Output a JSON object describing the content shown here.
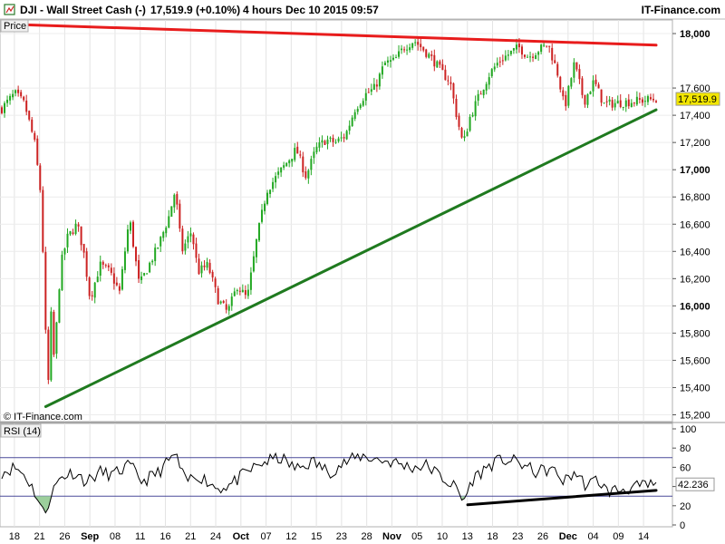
{
  "header": {
    "title": "DJI - Wall Street Cash (-)",
    "last": "17,519.9 (+0.10%)",
    "period": "4 hours",
    "datetime": "Dec 10 2015 09:57",
    "brand": "IT-Finance.com"
  },
  "panels": {
    "price_label": "Price",
    "rsi_label": "RSI (14)",
    "credit": "© IT-Finance.com"
  },
  "colors": {
    "up_candle": "#22a822",
    "down_candle": "#cc2222",
    "resistance": "#e81c1c",
    "support": "#1f7a1f",
    "rsi_trend": "#000000",
    "price_tag": "#f2e600",
    "rsi_oversold_fill": "#9ccf9c"
  },
  "chart_data": [
    {
      "type": "candlestick",
      "name": "price",
      "ylim": [
        15150,
        18100
      ],
      "y_ticks": [
        15200,
        15400,
        15600,
        15800,
        16000,
        16200,
        16400,
        16600,
        16800,
        17000,
        17200,
        17400,
        17600,
        18000
      ],
      "y_tick_labels": [
        "15,200",
        "15,400",
        "15,600",
        "15,800",
        "16,000",
        "16,200",
        "16,400",
        "16,600",
        "16,800",
        "17,000",
        "17,200",
        "17,400",
        "17,600",
        "18,000"
      ],
      "y_bold_ticks": [
        16000,
        17000,
        18000
      ],
      "x_labels": [
        "18",
        "21",
        "26",
        "Sep",
        "08",
        "11",
        "16",
        "21",
        "24",
        "Oct",
        "07",
        "12",
        "15",
        "23",
        "28",
        "Nov",
        "05",
        "10",
        "13",
        "18",
        "23",
        "26",
        "Dec",
        "04",
        "09",
        "14"
      ],
      "x_bold_labels": [
        "Sep",
        "Oct",
        "Nov",
        "Dec"
      ],
      "last_value": 17519.9,
      "last_value_label": "17,519.9",
      "path": [
        {
          "t": 0.0,
          "v": 17450
        },
        {
          "t": 0.02,
          "v": 17560
        },
        {
          "t": 0.035,
          "v": 17480
        },
        {
          "t": 0.05,
          "v": 17200
        },
        {
          "t": 0.06,
          "v": 16800
        },
        {
          "t": 0.066,
          "v": 15950
        },
        {
          "t": 0.07,
          "v": 15300
        },
        {
          "t": 0.075,
          "v": 15950
        },
        {
          "t": 0.08,
          "v": 15600
        },
        {
          "t": 0.09,
          "v": 16300
        },
        {
          "t": 0.1,
          "v": 16500
        },
        {
          "t": 0.115,
          "v": 16600
        },
        {
          "t": 0.125,
          "v": 16400
        },
        {
          "t": 0.135,
          "v": 16050
        },
        {
          "t": 0.15,
          "v": 16300
        },
        {
          "t": 0.165,
          "v": 16250
        },
        {
          "t": 0.18,
          "v": 16100
        },
        {
          "t": 0.195,
          "v": 16650
        },
        {
          "t": 0.21,
          "v": 16150
        },
        {
          "t": 0.225,
          "v": 16300
        },
        {
          "t": 0.24,
          "v": 16450
        },
        {
          "t": 0.255,
          "v": 16650
        },
        {
          "t": 0.265,
          "v": 16850
        },
        {
          "t": 0.275,
          "v": 16400
        },
        {
          "t": 0.29,
          "v": 16550
        },
        {
          "t": 0.3,
          "v": 16250
        },
        {
          "t": 0.315,
          "v": 16300
        },
        {
          "t": 0.33,
          "v": 16050
        },
        {
          "t": 0.345,
          "v": 15950
        },
        {
          "t": 0.36,
          "v": 16150
        },
        {
          "t": 0.375,
          "v": 16050
        },
        {
          "t": 0.39,
          "v": 16500
        },
        {
          "t": 0.405,
          "v": 16850
        },
        {
          "t": 0.42,
          "v": 16950
        },
        {
          "t": 0.435,
          "v": 17050
        },
        {
          "t": 0.45,
          "v": 17150
        },
        {
          "t": 0.465,
          "v": 16950
        },
        {
          "t": 0.48,
          "v": 17150
        },
        {
          "t": 0.495,
          "v": 17220
        },
        {
          "t": 0.51,
          "v": 17200
        },
        {
          "t": 0.525,
          "v": 17250
        },
        {
          "t": 0.54,
          "v": 17450
        },
        {
          "t": 0.555,
          "v": 17550
        },
        {
          "t": 0.57,
          "v": 17600
        },
        {
          "t": 0.585,
          "v": 17780
        },
        {
          "t": 0.6,
          "v": 17800
        },
        {
          "t": 0.615,
          "v": 17900
        },
        {
          "t": 0.63,
          "v": 17950
        },
        {
          "t": 0.645,
          "v": 17880
        },
        {
          "t": 0.66,
          "v": 17800
        },
        {
          "t": 0.675,
          "v": 17700
        },
        {
          "t": 0.685,
          "v": 17650
        },
        {
          "t": 0.695,
          "v": 17400
        },
        {
          "t": 0.705,
          "v": 17180
        },
        {
          "t": 0.715,
          "v": 17380
        },
        {
          "t": 0.73,
          "v": 17550
        },
        {
          "t": 0.745,
          "v": 17700
        },
        {
          "t": 0.76,
          "v": 17800
        },
        {
          "t": 0.775,
          "v": 17850
        },
        {
          "t": 0.79,
          "v": 17900
        },
        {
          "t": 0.805,
          "v": 17830
        },
        {
          "t": 0.82,
          "v": 17880
        },
        {
          "t": 0.835,
          "v": 17920
        },
        {
          "t": 0.85,
          "v": 17700
        },
        {
          "t": 0.86,
          "v": 17450
        },
        {
          "t": 0.875,
          "v": 17780
        },
        {
          "t": 0.89,
          "v": 17500
        },
        {
          "t": 0.905,
          "v": 17650
        },
        {
          "t": 0.92,
          "v": 17480
        },
        {
          "t": 1.0,
          "v": 17520
        }
      ],
      "trendlines": [
        {
          "name": "resistance",
          "from": [
            0.0,
            18070
          ],
          "to": [
            1.0,
            17915
          ]
        },
        {
          "name": "support",
          "from": [
            0.067,
            15260
          ],
          "to": [
            1.0,
            17440
          ]
        }
      ]
    },
    {
      "type": "line",
      "name": "RSI (14)",
      "ylim": [
        0,
        100
      ],
      "y_ticks": [
        0,
        20,
        40,
        60,
        80,
        100
      ],
      "bands": [
        30,
        70
      ],
      "last_value": 42.236,
      "last_value_label": "42.236",
      "path": [
        {
          "t": 0.0,
          "v": 55
        },
        {
          "t": 0.02,
          "v": 60
        },
        {
          "t": 0.035,
          "v": 52
        },
        {
          "t": 0.05,
          "v": 35
        },
        {
          "t": 0.065,
          "v": 10
        },
        {
          "t": 0.075,
          "v": 32
        },
        {
          "t": 0.09,
          "v": 50
        },
        {
          "t": 0.11,
          "v": 55
        },
        {
          "t": 0.13,
          "v": 45
        },
        {
          "t": 0.15,
          "v": 55
        },
        {
          "t": 0.17,
          "v": 52
        },
        {
          "t": 0.195,
          "v": 62
        },
        {
          "t": 0.215,
          "v": 45
        },
        {
          "t": 0.24,
          "v": 55
        },
        {
          "t": 0.265,
          "v": 74
        },
        {
          "t": 0.28,
          "v": 45
        },
        {
          "t": 0.3,
          "v": 52
        },
        {
          "t": 0.33,
          "v": 38
        },
        {
          "t": 0.35,
          "v": 42
        },
        {
          "t": 0.375,
          "v": 55
        },
        {
          "t": 0.4,
          "v": 65
        },
        {
          "t": 0.425,
          "v": 70
        },
        {
          "t": 0.45,
          "v": 58
        },
        {
          "t": 0.475,
          "v": 66
        },
        {
          "t": 0.5,
          "v": 55
        },
        {
          "t": 0.525,
          "v": 65
        },
        {
          "t": 0.55,
          "v": 72
        },
        {
          "t": 0.575,
          "v": 68
        },
        {
          "t": 0.6,
          "v": 65
        },
        {
          "t": 0.625,
          "v": 60
        },
        {
          "t": 0.65,
          "v": 62
        },
        {
          "t": 0.675,
          "v": 48
        },
        {
          "t": 0.695,
          "v": 38
        },
        {
          "t": 0.705,
          "v": 24
        },
        {
          "t": 0.72,
          "v": 48
        },
        {
          "t": 0.745,
          "v": 62
        },
        {
          "t": 0.765,
          "v": 68
        },
        {
          "t": 0.79,
          "v": 65
        },
        {
          "t": 0.815,
          "v": 55
        },
        {
          "t": 0.84,
          "v": 58
        },
        {
          "t": 0.86,
          "v": 45
        },
        {
          "t": 0.875,
          "v": 55
        },
        {
          "t": 0.895,
          "v": 40
        },
        {
          "t": 0.91,
          "v": 48
        },
        {
          "t": 0.925,
          "v": 35
        },
        {
          "t": 1.0,
          "v": 42
        }
      ],
      "trendlines": [
        {
          "name": "rsi-support",
          "from": [
            0.712,
            21
          ],
          "to": [
            1.0,
            36
          ]
        }
      ]
    }
  ]
}
